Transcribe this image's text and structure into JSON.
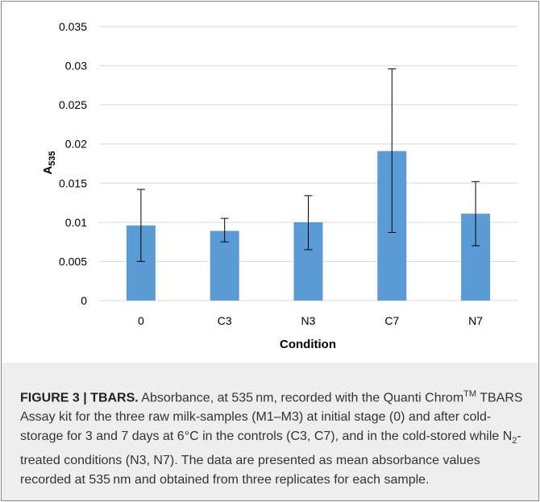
{
  "chart_data": {
    "type": "bar",
    "categories": [
      "0",
      "C3",
      "N3",
      "C7",
      "N7"
    ],
    "values": [
      0.0096,
      0.0089,
      0.01,
      0.0191,
      0.0111
    ],
    "error_low": [
      0.005,
      0.0075,
      0.0065,
      0.0087,
      0.007
    ],
    "error_high": [
      0.0142,
      0.0105,
      0.0134,
      0.0296,
      0.0152
    ],
    "xlabel": "Condition",
    "ylabel": "A",
    "ylabel_subscript": "535",
    "ylim": [
      0,
      0.035
    ],
    "yticks": [
      "0",
      "0.005",
      "0.01",
      "0.015",
      "0.02",
      "0.025",
      "0.03",
      "0.035"
    ],
    "grid": true,
    "bar_color": "#5b9bd5"
  },
  "caption": {
    "label": "FIGURE 3 |",
    "title": "TBARS.",
    "text_1": "Absorbance, at 535 nm, recorded with the Quanti Chrom",
    "tm": "TM",
    "text_2": "TBARS Assay kit for the three raw milk-samples (M1–M3) at initial stage (0) and after cold-storage for 3 and 7 days at 6°C in the controls (C3, C7), and in the cold-stored while N",
    "sub_2": "2",
    "text_3": "-treated conditions (N3, N7). The data are presented as mean absorbance values recorded at 535 nm and obtained from three replicates for each sample."
  }
}
